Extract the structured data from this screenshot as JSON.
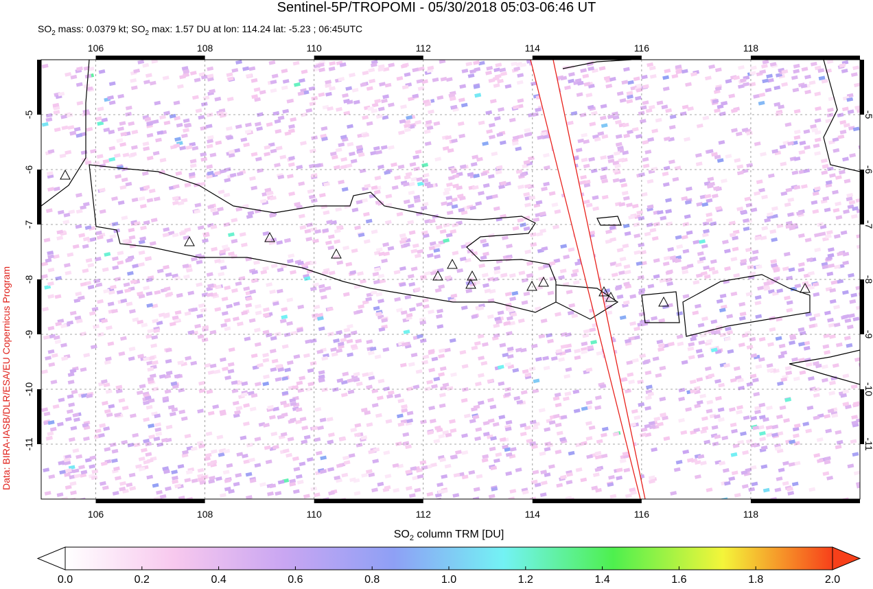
{
  "title": "Sentinel-5P/TROPOMI - 05/30/2018 05:03-06:46 UT",
  "subtitle": [
    "SO",
    "2",
    " mass: 0.0379 kt; SO",
    "2",
    " max: 1.57 DU at lon: 114.24 lat: -5.23 ; 06:45UTC"
  ],
  "map": {
    "xlim": [
      105,
      120
    ],
    "ylim": [
      -12,
      -4
    ],
    "xticks": [
      106,
      108,
      110,
      112,
      114,
      116,
      118
    ],
    "yticks": [
      -5,
      -6,
      -7,
      -8,
      -9,
      -10,
      -11
    ]
  },
  "colorbar": {
    "label": [
      "SO",
      "2",
      " column TRM [DU]"
    ],
    "lim": [
      0,
      2
    ],
    "ticks": [
      {
        "value": 0,
        "label": "0.0"
      },
      {
        "value": 0.2,
        "label": "0.2"
      },
      {
        "value": 0.4,
        "label": "0.4"
      },
      {
        "value": 0.6,
        "label": "0.6"
      },
      {
        "value": 0.8,
        "label": "0.8"
      },
      {
        "value": 1,
        "label": "1.0"
      },
      {
        "value": 1.2,
        "label": "1.2"
      },
      {
        "value": 1.4,
        "label": "1.4"
      },
      {
        "value": 1.6,
        "label": "1.6"
      },
      {
        "value": 1.8,
        "label": "1.8"
      },
      {
        "value": 2,
        "label": "2.0"
      }
    ],
    "colors": [
      "#ffffff",
      "#f7c8ee",
      "#c9a6f2",
      "#8ea0f5",
      "#73f2f4",
      "#4ef04e",
      "#f4f53a",
      "#f7401a"
    ]
  },
  "credit": "Data: BIRA-IASB/DLR/ESA/EU Copernicus Program"
}
